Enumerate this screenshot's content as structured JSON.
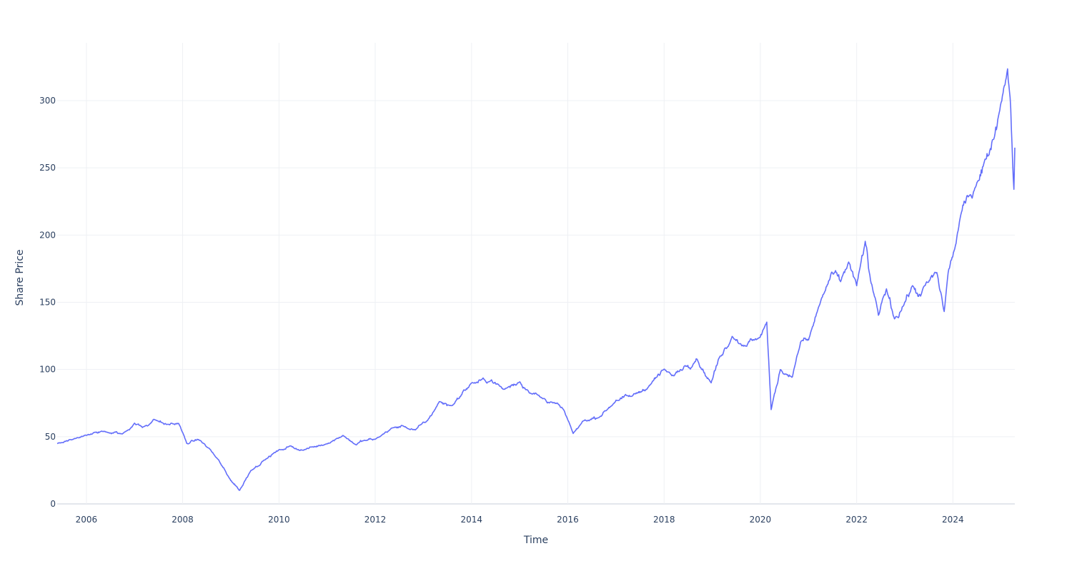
{
  "chart_data": {
    "type": "line",
    "title": "",
    "xlabel": "Time",
    "ylabel": "Share Price",
    "xlim": [
      "2005-05-24",
      "2025-04-15"
    ],
    "ylim": [
      0,
      343
    ],
    "x_ticks": [
      "2006",
      "2008",
      "2010",
      "2012",
      "2014",
      "2016",
      "2018",
      "2020",
      "2022",
      "2024"
    ],
    "y_ticks": [
      0,
      50,
      100,
      150,
      200,
      250,
      300
    ],
    "grid": true,
    "legend": "none",
    "colors": {
      "line": "#636efa",
      "grid": "#eef0f4",
      "zeroline": "#e3e6ec",
      "text": "#2a3f5f"
    },
    "series": [
      {
        "x": [
          "2005-05-24",
          "2005-09-01",
          "2006-01-01",
          "2006-05-01",
          "2006-10-01",
          "2007-01-01",
          "2007-03-01",
          "2007-06-01",
          "2007-09-01",
          "2007-12-01",
          "2008-02-01",
          "2008-05-01",
          "2008-08-01",
          "2008-10-15",
          "2008-12-01",
          "2009-03-09",
          "2009-06-01",
          "2009-09-01",
          "2010-01-01",
          "2010-04-01",
          "2010-07-01",
          "2011-01-01",
          "2011-05-01",
          "2011-08-10",
          "2011-10-01",
          "2012-01-01",
          "2012-05-01",
          "2012-08-01",
          "2012-11-01",
          "2013-02-01",
          "2013-05-01",
          "2013-08-01",
          "2014-01-01",
          "2014-06-01",
          "2014-09-01",
          "2015-01-01",
          "2015-03-01",
          "2015-06-01",
          "2015-08-24",
          "2015-12-01",
          "2016-02-11",
          "2016-05-01",
          "2016-09-01",
          "2017-01-01",
          "2017-05-01",
          "2017-09-01",
          "2018-01-01",
          "2018-03-01",
          "2018-06-01",
          "2018-09-01",
          "2018-12-24",
          "2019-03-01",
          "2019-06-01",
          "2019-09-01",
          "2019-12-01",
          "2020-02-19",
          "2020-03-23",
          "2020-06-01",
          "2020-09-01",
          "2020-11-01",
          "2021-01-01",
          "2021-04-01",
          "2021-07-01",
          "2021-09-01",
          "2021-11-01",
          "2022-01-01",
          "2022-03-07",
          "2022-04-01",
          "2022-06-15",
          "2022-08-15",
          "2022-10-15",
          "2023-01-01",
          "2023-03-01",
          "2023-05-01",
          "2023-07-01",
          "2023-09-01",
          "2023-10-27",
          "2023-12-01",
          "2024-01-15",
          "2024-03-01",
          "2024-05-01",
          "2024-07-01",
          "2024-09-01",
          "2024-11-01",
          "2025-01-01",
          "2025-02-19",
          "2025-03-15",
          "2025-04-08",
          "2025-04-15"
        ],
        "y": [
          45,
          48,
          51,
          54,
          52,
          60,
          57,
          63,
          59,
          60,
          45,
          48,
          40,
          30,
          22,
          10,
          25,
          32,
          40,
          43,
          40,
          45,
          51,
          44,
          47,
          48,
          56,
          58,
          55,
          62,
          76,
          73,
          90,
          92,
          85,
          91,
          85,
          80,
          76,
          70,
          52,
          62,
          65,
          77,
          80,
          87,
          100,
          95,
          102,
          108,
          90,
          110,
          125,
          118,
          122,
          135,
          70,
          100,
          95,
          120,
          122,
          150,
          172,
          165,
          180,
          162,
          195,
          175,
          140,
          160,
          138,
          150,
          162,
          155,
          165,
          172,
          143,
          175,
          190,
          215,
          228,
          240,
          255,
          272,
          300,
          325,
          295,
          235,
          265
        ]
      }
    ]
  }
}
